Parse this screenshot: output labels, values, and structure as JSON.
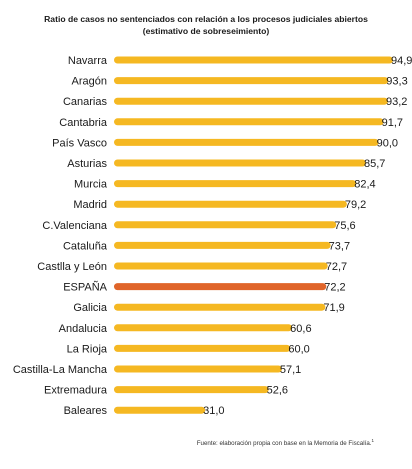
{
  "title_lines": [
    "Ratio de casos no sentenciados con relación a los procesos judiciales abiertos",
    "(estimativo de sobreseimiento)"
  ],
  "source": "Fuente: elaboración propia con base en la Memoria de Fiscalía.",
  "source_note": "1",
  "colors": {
    "bar": "#f5b822",
    "highlight": "#e0652a",
    "label": "#1a1a1a"
  },
  "chart_data": {
    "type": "bar",
    "orientation": "horizontal",
    "title": "Ratio de casos no sentenciados con relación a los procesos judiciales abiertos (estimativo de sobreseimiento)",
    "categories": [
      "Navarra",
      "Aragón",
      "Canarias",
      "Cantabria",
      "País Vasco",
      "Asturias",
      "Murcia",
      "Madrid",
      "C.Valenciana",
      "Cataluña",
      "Castlla y León",
      "ESPAÑA",
      "Galicia",
      "Andalucia",
      "La Rioja",
      "Castilla-La Mancha",
      "Extremadura",
      "Baleares"
    ],
    "values": [
      94.9,
      93.3,
      93.2,
      91.7,
      90.0,
      85.7,
      82.4,
      79.2,
      75.6,
      73.7,
      72.7,
      72.2,
      71.9,
      60.6,
      60.0,
      57.1,
      52.6,
      31.0
    ],
    "value_labels": [
      "94,9",
      "93,3",
      "93,2",
      "91,7",
      "90,0",
      "85,7",
      "82,4",
      "79,2",
      "75,6",
      "73,7",
      "72,7",
      "72,2",
      "71,9",
      "60,6",
      "60,0",
      "57,1",
      "52,6",
      "31,0"
    ],
    "highlight": "ESPAÑA",
    "xlim": [
      0,
      100
    ],
    "xlabel": "",
    "ylabel": "",
    "grid": false,
    "axis_visible": false
  }
}
